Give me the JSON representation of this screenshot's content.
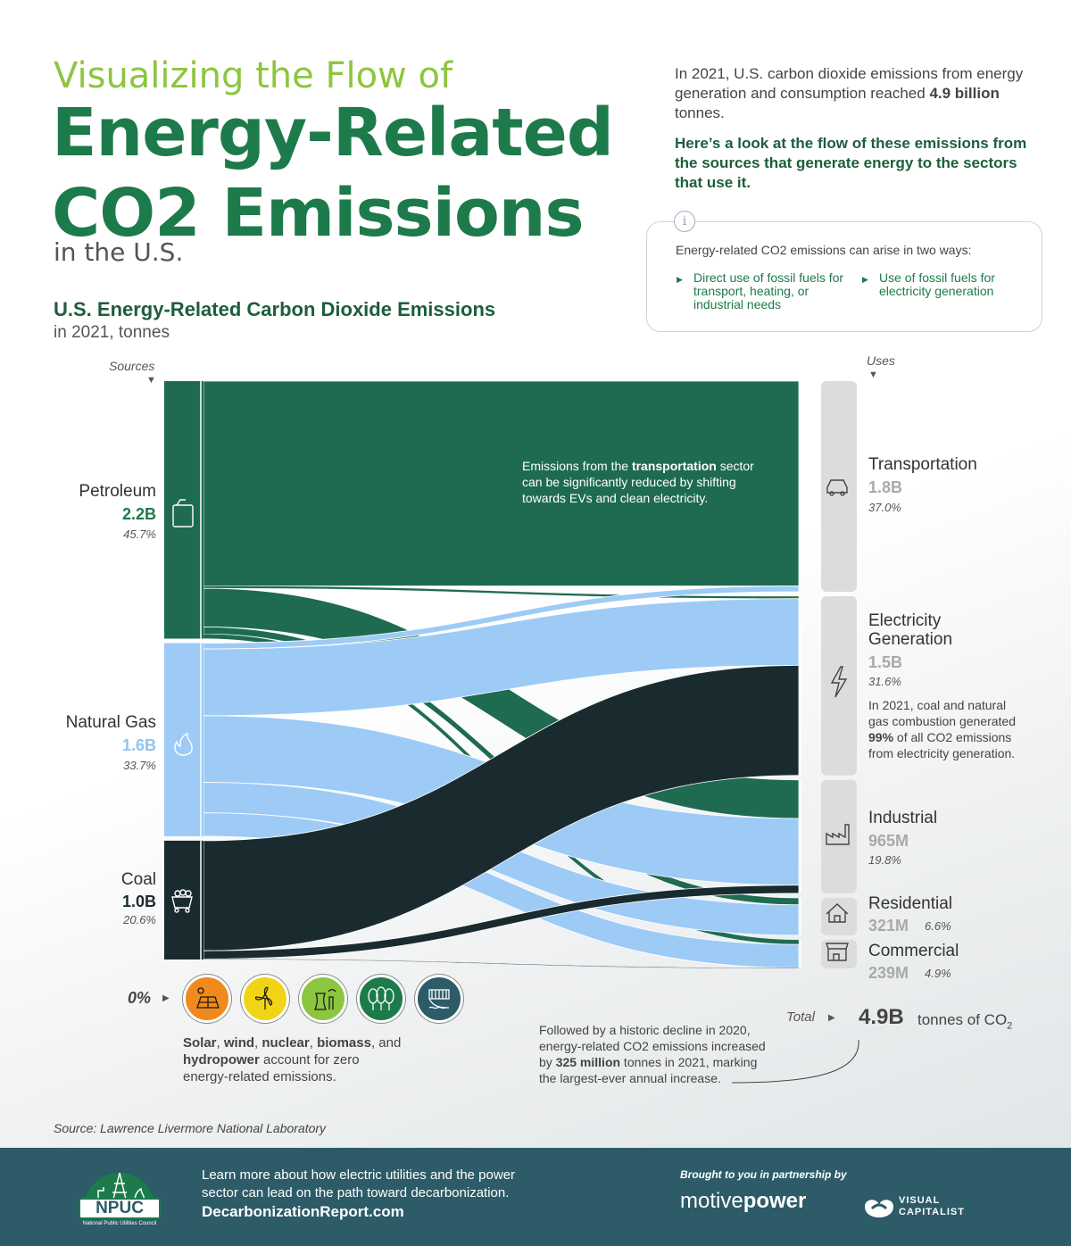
{
  "header": {
    "lead": "Visualizing the Flow of",
    "title_line1": "Energy-Related",
    "title_line2": "CO2 Emissions",
    "sub": "in the U.S."
  },
  "intro": {
    "p1_a": "In 2021, U.S. carbon dioxide emissions from energy generation and consumption reached ",
    "p1_bold": "4.9 billion",
    "p1_b": " tonnes.",
    "p2": "Here’s a look at the flow of these emissions from the sources that generate energy to the sectors that use it."
  },
  "info_box": {
    "icon": "info-icon",
    "heading": "Energy-related CO2 emissions can arise in two ways:",
    "bullet1": "Direct use of fossil fuels for transport, heating, or industrial needs",
    "bullet2": "Use of fossil fuels for electricity generation"
  },
  "chart_data": {
    "type": "sankey",
    "title": "U.S. Energy-Related Carbon Dioxide Emissions",
    "subtitle": "in 2021, tonnes",
    "units": "tonnes of CO2",
    "sources_label": "Sources",
    "uses_label": "Uses",
    "sources": [
      {
        "name": "Petroleum",
        "value_label": "2.2B",
        "pct": "45.7%",
        "color": "#1e6b52",
        "value_color": "#1d7a4a",
        "icon": "fuel-can-icon"
      },
      {
        "name": "Natural Gas",
        "value_label": "1.6B",
        "pct": "33.7%",
        "color": "#9dcbf6",
        "value_color": "#8ec4f0",
        "icon": "flame-icon"
      },
      {
        "name": "Coal",
        "value_label": "1.0B",
        "pct": "20.6%",
        "color": "#1a2b2f",
        "value_color": "#1a2b2f",
        "icon": "coal-cart-icon"
      }
    ],
    "uses": [
      {
        "name": "Transportation",
        "value_label": "1.8B",
        "pct": "37.0%",
        "icon": "car-icon"
      },
      {
        "name_line1": "Electricity",
        "name_line2": "Generation",
        "value_label": "1.5B",
        "pct": "31.6%",
        "icon": "lightning-icon"
      },
      {
        "name": "Industrial",
        "value_label": "965M",
        "pct": "19.8%",
        "icon": "factory-icon"
      },
      {
        "name": "Residential",
        "value_label": "321M",
        "pct": "6.6%",
        "icon": "house-icon"
      },
      {
        "name": "Commercial",
        "value_label": "239M",
        "pct": "4.9%",
        "icon": "store-icon"
      }
    ],
    "flows": [
      {
        "source": "Petroleum",
        "use": "Transportation",
        "value": 1.75
      },
      {
        "source": "Petroleum",
        "use": "Electricity Generation",
        "value": 0.02
      },
      {
        "source": "Petroleum",
        "use": "Industrial",
        "value": 0.33
      },
      {
        "source": "Petroleum",
        "use": "Residential",
        "value": 0.06
      },
      {
        "source": "Petroleum",
        "use": "Commercial",
        "value": 0.04
      },
      {
        "source": "Natural Gas",
        "use": "Transportation",
        "value": 0.05
      },
      {
        "source": "Natural Gas",
        "use": "Electricity Generation",
        "value": 0.57
      },
      {
        "source": "Natural Gas",
        "use": "Industrial",
        "value": 0.57
      },
      {
        "source": "Natural Gas",
        "use": "Residential",
        "value": 0.26
      },
      {
        "source": "Natural Gas",
        "use": "Commercial",
        "value": 0.2
      },
      {
        "source": "Coal",
        "use": "Electricity Generation",
        "value": 0.94
      },
      {
        "source": "Coal",
        "use": "Industrial",
        "value": 0.07
      },
      {
        "source": "Coal",
        "use": "Commercial",
        "value": 0.005
      }
    ],
    "total_label": "Total",
    "total_value": "4.9B",
    "total_units": "tonnes of CO",
    "total_units_sub": "2"
  },
  "annotations": {
    "transport_a": "Emissions from the ",
    "transport_bold": "transportation",
    "transport_b": " sector can be significantly reduced by shifting towards EVs and clean electricity.",
    "elec_a": "In 2021, coal and natural gas combustion generated ",
    "elec_bold": "99%",
    "elec_b": " of all CO2 emissions from electricity generation.",
    "zero_label": "0%",
    "zero_items": [
      "Solar",
      "wind",
      "nuclear",
      "biomass",
      "hydropower"
    ],
    "zero_sep1": ", ",
    "zero_sep2": ", and ",
    "zero_tail": " account for zero energy-related emissions.",
    "decline_a": "Followed by a historic decline in 2020, energy-related CO2 emissions increased by ",
    "decline_bold": "325 million",
    "decline_b": " tonnes in 2021, marking the largest-ever annual increase."
  },
  "zero_icons": [
    {
      "name": "solar-panel-icon",
      "color": "#f08a1c"
    },
    {
      "name": "wind-turbine-icon",
      "color": "#f2d416"
    },
    {
      "name": "nuclear-plant-icon",
      "color": "#8cc63f"
    },
    {
      "name": "trees-icon",
      "color": "#1d7a4a"
    },
    {
      "name": "hydro-dam-icon",
      "color": "#2d5b68"
    }
  ],
  "source_note": "Source: Lawrence Livermore National Laboratory",
  "footer": {
    "logo_text": "NPUC",
    "logo_sub": "National Public Utilities Council",
    "text": "Learn more about how electric utilities and the power sector can lead on the path toward decarbonization.",
    "link": "DecarbonizationReport.com",
    "partner_label": "Brought to you in partnership by",
    "partner1_a": "motive",
    "partner1_b": "power",
    "partner2_line1": "VISUAL",
    "partner2_line2": "CAPITALIST"
  }
}
